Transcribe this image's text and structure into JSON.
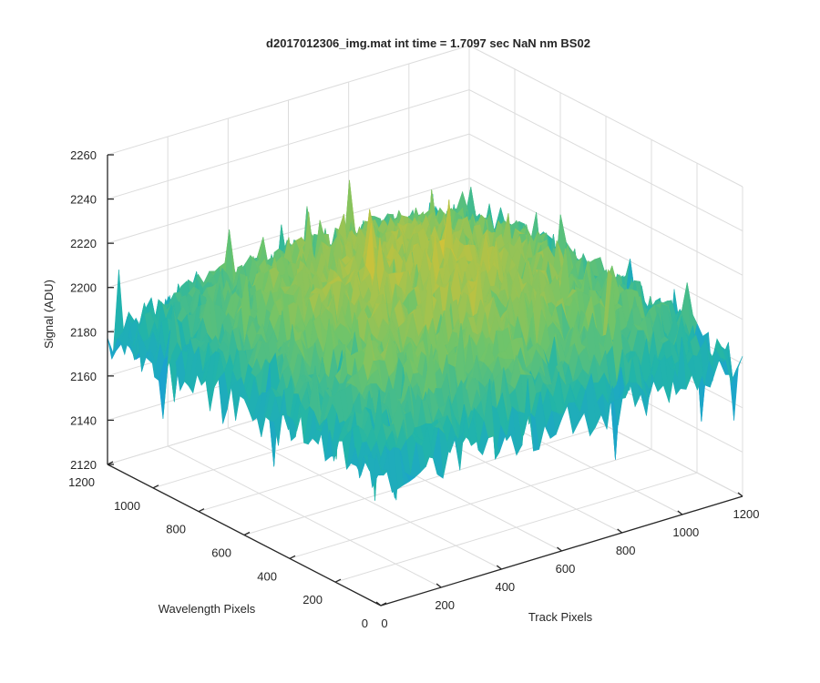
{
  "chart_data": {
    "type": "surface",
    "title": "d2017012306_img.mat int time = 1.7097 sec  NaN nm BS02",
    "xlabel": "Track Pixels",
    "ylabel": "Wavelength Pixels",
    "zlabel": "Signal (ADU)",
    "xlim": [
      0,
      1200
    ],
    "ylim": [
      0,
      1200
    ],
    "zlim": [
      2120,
      2260
    ],
    "x_ticks": [
      "0",
      "200",
      "400",
      "600",
      "800",
      "1000",
      "1200"
    ],
    "y_ticks": [
      "0",
      "200",
      "400",
      "600",
      "800",
      "1000",
      "1200"
    ],
    "z_ticks": [
      "2120",
      "2140",
      "2160",
      "2180",
      "2200",
      "2220",
      "2240",
      "2260"
    ],
    "grid": true,
    "colormap": "parula",
    "colormap_colors": [
      "#0072bd",
      "#1aa0d5",
      "#22b5a8",
      "#6fc46a",
      "#c5c23d",
      "#f2c62f"
    ],
    "surface": {
      "description_values": "noisy detector frame",
      "edge_level_mean": 2178,
      "center_level_mean": 2215,
      "noise_range": 20,
      "z_min_observed": 2125,
      "z_max_observed": 2252
    }
  }
}
